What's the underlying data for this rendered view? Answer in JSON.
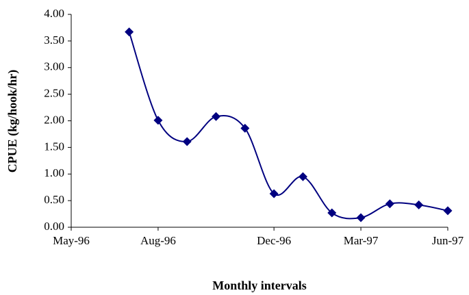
{
  "chart_data": {
    "type": "line",
    "x_label": "Monthly intervals",
    "y_label": "CPUE (kg/hook/hr)",
    "x": [
      "1996-07",
      "1996-08",
      "1996-09",
      "1996-10",
      "1996-11",
      "1996-12",
      "1997-01",
      "1997-02",
      "1997-03",
      "1997-04",
      "1997-05",
      "1997-06"
    ],
    "values": [
      3.67,
      2.01,
      1.61,
      2.08,
      1.86,
      0.63,
      0.95,
      0.27,
      0.18,
      0.44,
      0.42,
      0.31
    ],
    "color": "#000080",
    "smooth": true,
    "marker": "diamond",
    "xlim": [
      "1996-05",
      "1997-06"
    ],
    "xticks": [
      {
        "value": "1996-05",
        "label": "May-96"
      },
      {
        "value": "1996-08",
        "label": "Aug-96"
      },
      {
        "value": "1996-12",
        "label": "Dec-96"
      },
      {
        "value": "1997-03",
        "label": "Mar-97"
      },
      {
        "value": "1997-06",
        "label": "Jun-97"
      }
    ],
    "ylim": [
      0,
      4
    ],
    "yticks": [
      {
        "value": 0,
        "label": "0.00"
      },
      {
        "value": 0.5,
        "label": "0.50"
      },
      {
        "value": 1,
        "label": "1.00"
      },
      {
        "value": 1.5,
        "label": "1.50"
      },
      {
        "value": 2,
        "label": "2.00"
      },
      {
        "value": 2.5,
        "label": "2.50"
      },
      {
        "value": 3,
        "label": "3.00"
      },
      {
        "value": 3.5,
        "label": "3.50"
      },
      {
        "value": 4,
        "label": "4.00"
      }
    ],
    "grid": false
  }
}
